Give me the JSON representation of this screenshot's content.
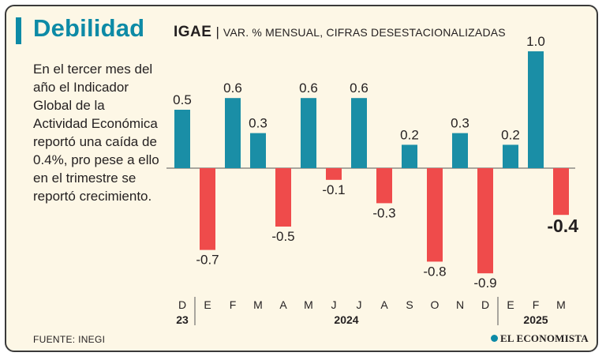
{
  "header": {
    "title": "Debilidad",
    "description": "En el tercer mes del año el Indicador Global de la Actividad Económica reportó una caída de 0.4%, pro pese a ello en el trimestre se reportó crecimiento."
  },
  "footer": {
    "source": "FUENTE: INEGI",
    "logo_text": "EL ECONOMISTA"
  },
  "colors": {
    "positive": "#1a8ea6",
    "negative": "#ef4b4b",
    "accent": "#0d8aa6",
    "background": "#fdf7e6"
  },
  "chart_data": {
    "type": "bar",
    "title": "IGAE",
    "subtitle": "VAR. % MENSUAL, CIFRAS DESESTACIONALIZADAS",
    "categories": [
      "D",
      "E",
      "F",
      "M",
      "A",
      "M",
      "J",
      "J",
      "A",
      "S",
      "O",
      "N",
      "D",
      "E",
      "F",
      "M"
    ],
    "values": [
      0.5,
      -0.7,
      0.6,
      0.3,
      -0.5,
      0.6,
      -0.1,
      0.6,
      -0.3,
      0.2,
      -0.8,
      0.3,
      -0.9,
      0.2,
      1.0,
      -0.4
    ],
    "labels": [
      "0.5",
      "-0.7",
      "0.6",
      "0.3",
      "-0.5",
      "0.6",
      "-0.1",
      "0.6",
      "-0.3",
      "0.2",
      "-0.8",
      "0.3",
      "-0.9",
      "0.2",
      "1.0",
      "-0.4"
    ],
    "highlight_last": true,
    "year_groups": [
      {
        "label": "23",
        "start": 0,
        "end": 0
      },
      {
        "label": "2024",
        "start": 1,
        "end": 12
      },
      {
        "label": "2025",
        "start": 13,
        "end": 15
      }
    ],
    "grid": false,
    "legend": "none"
  }
}
